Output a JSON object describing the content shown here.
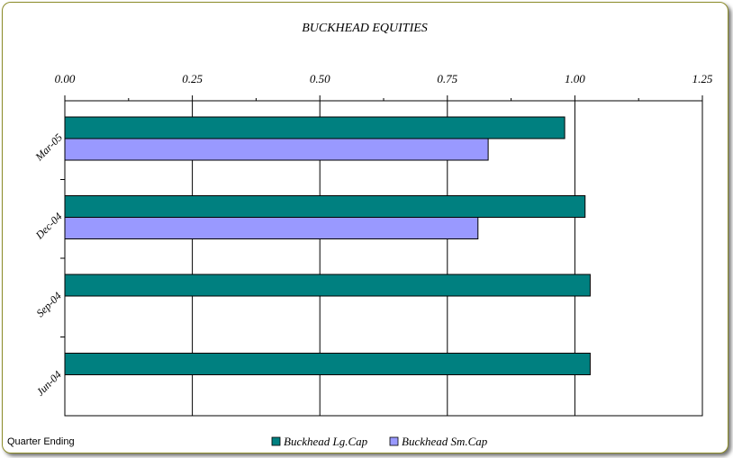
{
  "chart_data": {
    "type": "bar",
    "orientation": "horizontal",
    "title": "BUCKHEAD EQUITIES",
    "xlabel": "",
    "ylabel": "Quarter Ending",
    "categories": [
      "Mar-05",
      "Dec-04",
      "Sep-04",
      "Jun-04"
    ],
    "xlim": [
      0,
      1.25
    ],
    "xticks": [
      "0.00",
      "0.25",
      "0.50",
      "0.75",
      "1.00",
      "1.25"
    ],
    "grid": true,
    "legend_position": "bottom",
    "series": [
      {
        "name": "Buckhead Lg.Cap",
        "color": "#008080",
        "values": [
          0.98,
          1.02,
          1.03,
          1.03
        ]
      },
      {
        "name": "Buckhead Sm.Cap",
        "color": "#9999ff",
        "values": [
          0.83,
          0.81,
          null,
          null
        ]
      }
    ]
  }
}
